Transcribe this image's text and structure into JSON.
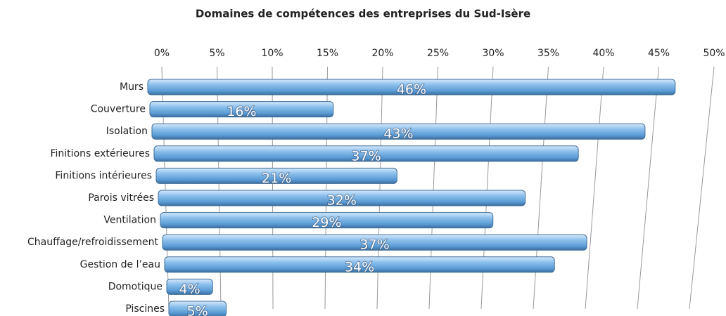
{
  "chart_data": {
    "type": "bar",
    "orientation": "horizontal",
    "title": "Domaines de compétences des entreprises du Sud-Isère",
    "categories": [
      "Murs",
      "Couverture",
      "Isolation",
      "Finitions extérieures",
      "Finitions intérieures",
      "Parois vitrées",
      "Ventilation",
      "Chauffage/refroidissement",
      "Gestion de l’eau",
      "Domotique",
      "Piscines"
    ],
    "values": [
      46,
      16,
      43,
      37,
      21,
      32,
      29,
      37,
      34,
      4,
      5
    ],
    "value_labels": [
      "46%",
      "16%",
      "43%",
      "37%",
      "21%",
      "32%",
      "29%",
      "37%",
      "34%",
      "4%",
      "5%"
    ],
    "color": "#6fa8dc",
    "xlim": [
      0,
      50
    ],
    "xticks": [
      {
        "value": 0,
        "label": "0%"
      },
      {
        "value": 5,
        "label": "5%"
      },
      {
        "value": 10,
        "label": "10%"
      },
      {
        "value": 15,
        "label": "15%"
      },
      {
        "value": 20,
        "label": "20%"
      },
      {
        "value": 25,
        "label": "25%"
      },
      {
        "value": 30,
        "label": "30%"
      },
      {
        "value": 35,
        "label": "35%"
      },
      {
        "value": 40,
        "label": "40%"
      },
      {
        "value": 45,
        "label": "45%"
      },
      {
        "value": 50,
        "label": "50%"
      }
    ],
    "grid": true
  }
}
